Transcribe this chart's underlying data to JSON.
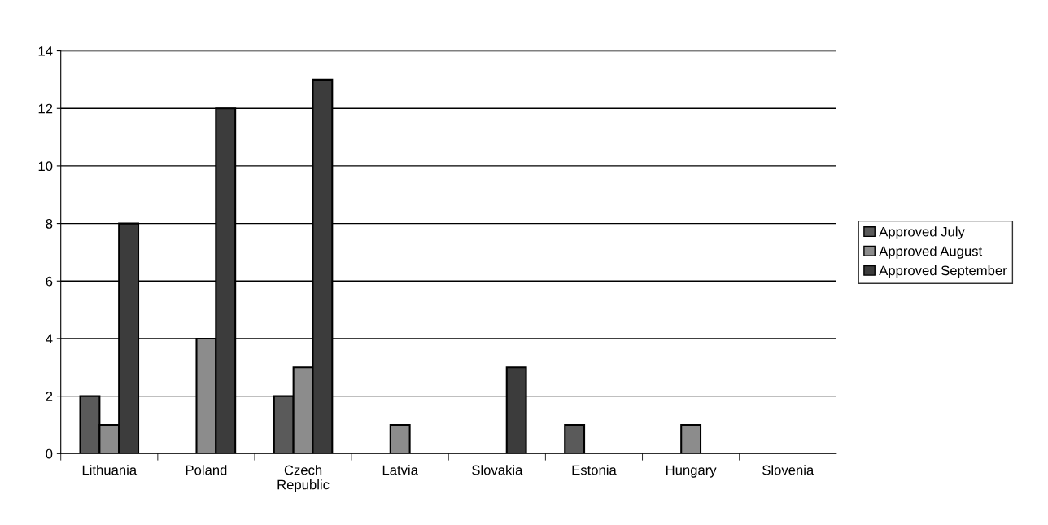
{
  "chart_data": {
    "type": "bar",
    "categories": [
      "Lithuania",
      "Poland",
      "Czech\nRepublic",
      "Latvia",
      "Slovakia",
      "Estonia",
      "Hungary",
      "Slovenia"
    ],
    "series": [
      {
        "name": "Approved July",
        "color": "#5a5a5a",
        "values": [
          2,
          null,
          2,
          null,
          null,
          1,
          null,
          null
        ]
      },
      {
        "name": "Approved August",
        "color": "#8c8c8c",
        "values": [
          1,
          4,
          3,
          1,
          null,
          null,
          1,
          null
        ]
      },
      {
        "name": "Approved September",
        "color": "#3c3c3c",
        "values": [
          8,
          12,
          13,
          null,
          3,
          null,
          null,
          null
        ]
      }
    ],
    "ylim": [
      0,
      14
    ],
    "yticks": [
      0,
      2,
      4,
      6,
      8,
      10,
      12,
      14
    ],
    "grid": "y",
    "legend": "right"
  }
}
